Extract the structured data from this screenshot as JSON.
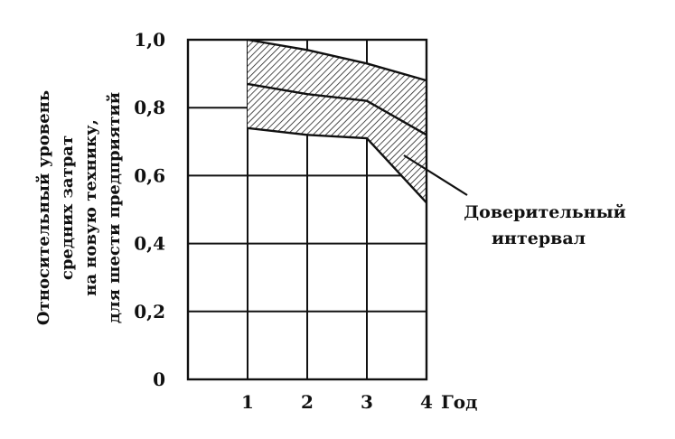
{
  "chart_data": {
    "type": "area",
    "ylabel_lines": [
      "Относительный уровень",
      "средних затрат",
      "на новую технику,",
      "для шести предприятий"
    ],
    "xlabel": "Год",
    "x": [
      1,
      2,
      3,
      4
    ],
    "x_ticks": [
      "1",
      "2",
      "3",
      "4"
    ],
    "y_ticks": [
      "0",
      "0,2",
      "0,4",
      "0,6",
      "0,8",
      "1,0"
    ],
    "y_tick_values": [
      0,
      0.2,
      0.4,
      0.6,
      0.8,
      1.0
    ],
    "xlim": [
      0,
      4
    ],
    "ylim": [
      0,
      1.0
    ],
    "grid": true,
    "series": [
      {
        "role": "upper bound",
        "x": [
          1,
          2,
          3,
          4
        ],
        "values": [
          1.0,
          0.97,
          0.93,
          0.88
        ]
      },
      {
        "role": "mean",
        "x": [
          1,
          2,
          3,
          4
        ],
        "values": [
          0.87,
          0.84,
          0.82,
          0.72
        ]
      },
      {
        "role": "lower bound",
        "x": [
          1,
          2,
          3,
          4
        ],
        "values": [
          0.74,
          0.72,
          0.71,
          0.52
        ]
      }
    ],
    "band_label_lines": [
      "Доверительный",
      "интервал"
    ]
  }
}
